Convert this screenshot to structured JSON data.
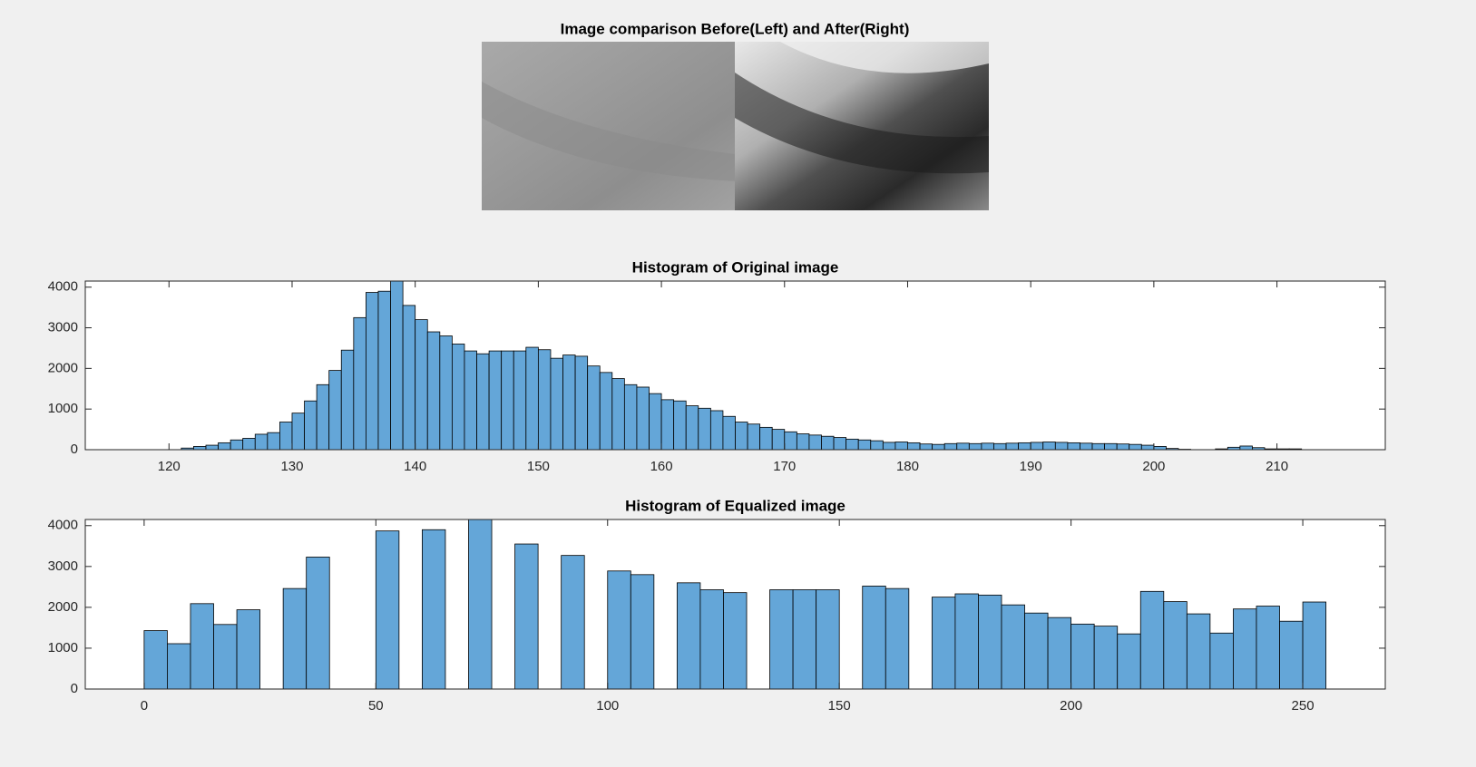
{
  "image_panel": {
    "title": "Image comparison Before(Left) and After(Right)"
  },
  "chart_data": [
    {
      "type": "histogram",
      "title": "Histogram of Original image",
      "color": "#64a6d8",
      "bins": [
        121,
        122,
        123,
        124,
        125,
        126,
        127,
        128,
        129,
        130,
        131,
        132,
        133,
        134,
        135,
        136,
        137,
        138,
        139,
        140,
        141,
        142,
        143,
        144,
        145,
        146,
        147,
        148,
        149,
        150,
        151,
        152,
        153,
        154,
        155,
        156,
        157,
        158,
        159,
        160,
        161,
        162,
        163,
        164,
        165,
        166,
        167,
        168,
        169,
        170,
        171,
        172,
        173,
        174,
        175,
        176,
        177,
        178,
        179,
        180,
        181,
        182,
        183,
        184,
        185,
        186,
        187,
        188,
        189,
        190,
        191,
        192,
        193,
        194,
        195,
        196,
        197,
        198,
        199,
        200,
        201,
        202,
        203,
        204,
        205,
        206,
        207,
        208,
        209,
        210,
        211,
        212
      ],
      "values": [
        40,
        80,
        110,
        170,
        240,
        280,
        380,
        420,
        680,
        900,
        1200,
        1600,
        1950,
        2450,
        3250,
        3870,
        3900,
        4150,
        3550,
        3200,
        2900,
        2800,
        2600,
        2430,
        2360,
        2430,
        2430,
        2430,
        2520,
        2460,
        2250,
        2330,
        2300,
        2060,
        1900,
        1750,
        1600,
        1540,
        1380,
        1230,
        1200,
        1080,
        1020,
        960,
        820,
        680,
        630,
        550,
        500,
        440,
        390,
        360,
        330,
        300,
        260,
        240,
        220,
        180,
        190,
        170,
        140,
        130,
        150,
        160,
        150,
        160,
        150,
        160,
        170,
        180,
        190,
        180,
        170,
        160,
        150,
        150,
        140,
        130,
        110,
        80,
        30,
        10,
        0,
        0,
        20,
        60,
        90,
        50,
        20,
        20,
        20
      ],
      "xlim": [
        113.2,
        218.8
      ],
      "xticks": [
        120,
        130,
        140,
        150,
        160,
        170,
        180,
        190,
        200,
        210
      ],
      "ylim": [
        0,
        4150
      ],
      "yticks": [
        0,
        1000,
        2000,
        3000,
        4000
      ]
    },
    {
      "type": "histogram",
      "title": "Histogram of Equalized image",
      "color": "#64a6d8",
      "bins": [
        0,
        5,
        10,
        15,
        20,
        25,
        30,
        35,
        40,
        45,
        50,
        55,
        60,
        65,
        70,
        75,
        80,
        85,
        90,
        95,
        100,
        105,
        110,
        115,
        120,
        125,
        130,
        135,
        140,
        145,
        150,
        155,
        160,
        165,
        170,
        175,
        180,
        185,
        190,
        195,
        200,
        205,
        210,
        215,
        220,
        225,
        230,
        235,
        240,
        245,
        250,
        255
      ],
      "values": [
        1430,
        1110,
        2090,
        1580,
        1940,
        0,
        2460,
        3230,
        0,
        0,
        3870,
        0,
        3900,
        0,
        4150,
        0,
        3550,
        0,
        3270,
        0,
        2890,
        2800,
        0,
        2600,
        2430,
        2360,
        0,
        2430,
        2430,
        2430,
        0,
        2520,
        2460,
        0,
        2250,
        2330,
        2300,
        2060,
        1860,
        1750,
        1590,
        1540,
        1350,
        2390,
        2140,
        1840,
        1370,
        1960,
        2030,
        1660,
        2130
      ],
      "xlim": [
        -12.7,
        267.8
      ],
      "xticks": [
        0,
        50,
        100,
        150,
        200,
        250
      ],
      "ylim": [
        0,
        4150
      ],
      "yticks": [
        0,
        1000,
        2000,
        3000,
        4000
      ]
    }
  ]
}
